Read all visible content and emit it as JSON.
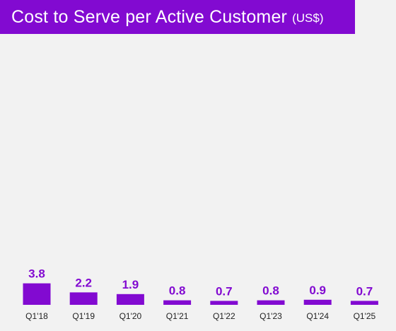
{
  "header": {
    "title": "Cost to Serve per Active Customer",
    "unit": "(US$)"
  },
  "colors": {
    "brand": "#820ad1",
    "background": "#f2f2f2",
    "tick_text": "#222222"
  },
  "chart_data": {
    "type": "bar",
    "title": "Cost to Serve per Active Customer (US$)",
    "xlabel": "",
    "ylabel": "",
    "categories": [
      "Q1'18",
      "Q1'19",
      "Q1'20",
      "Q1'21",
      "Q1'22",
      "Q1'23",
      "Q1'24",
      "Q1'25"
    ],
    "values": [
      3.8,
      2.2,
      1.9,
      0.8,
      0.7,
      0.8,
      0.9,
      0.7
    ],
    "value_labels": [
      "3.8",
      "2.2",
      "1.9",
      "0.8",
      "0.7",
      "0.8",
      "0.9",
      "0.7"
    ],
    "grid": false,
    "legend": "none"
  }
}
